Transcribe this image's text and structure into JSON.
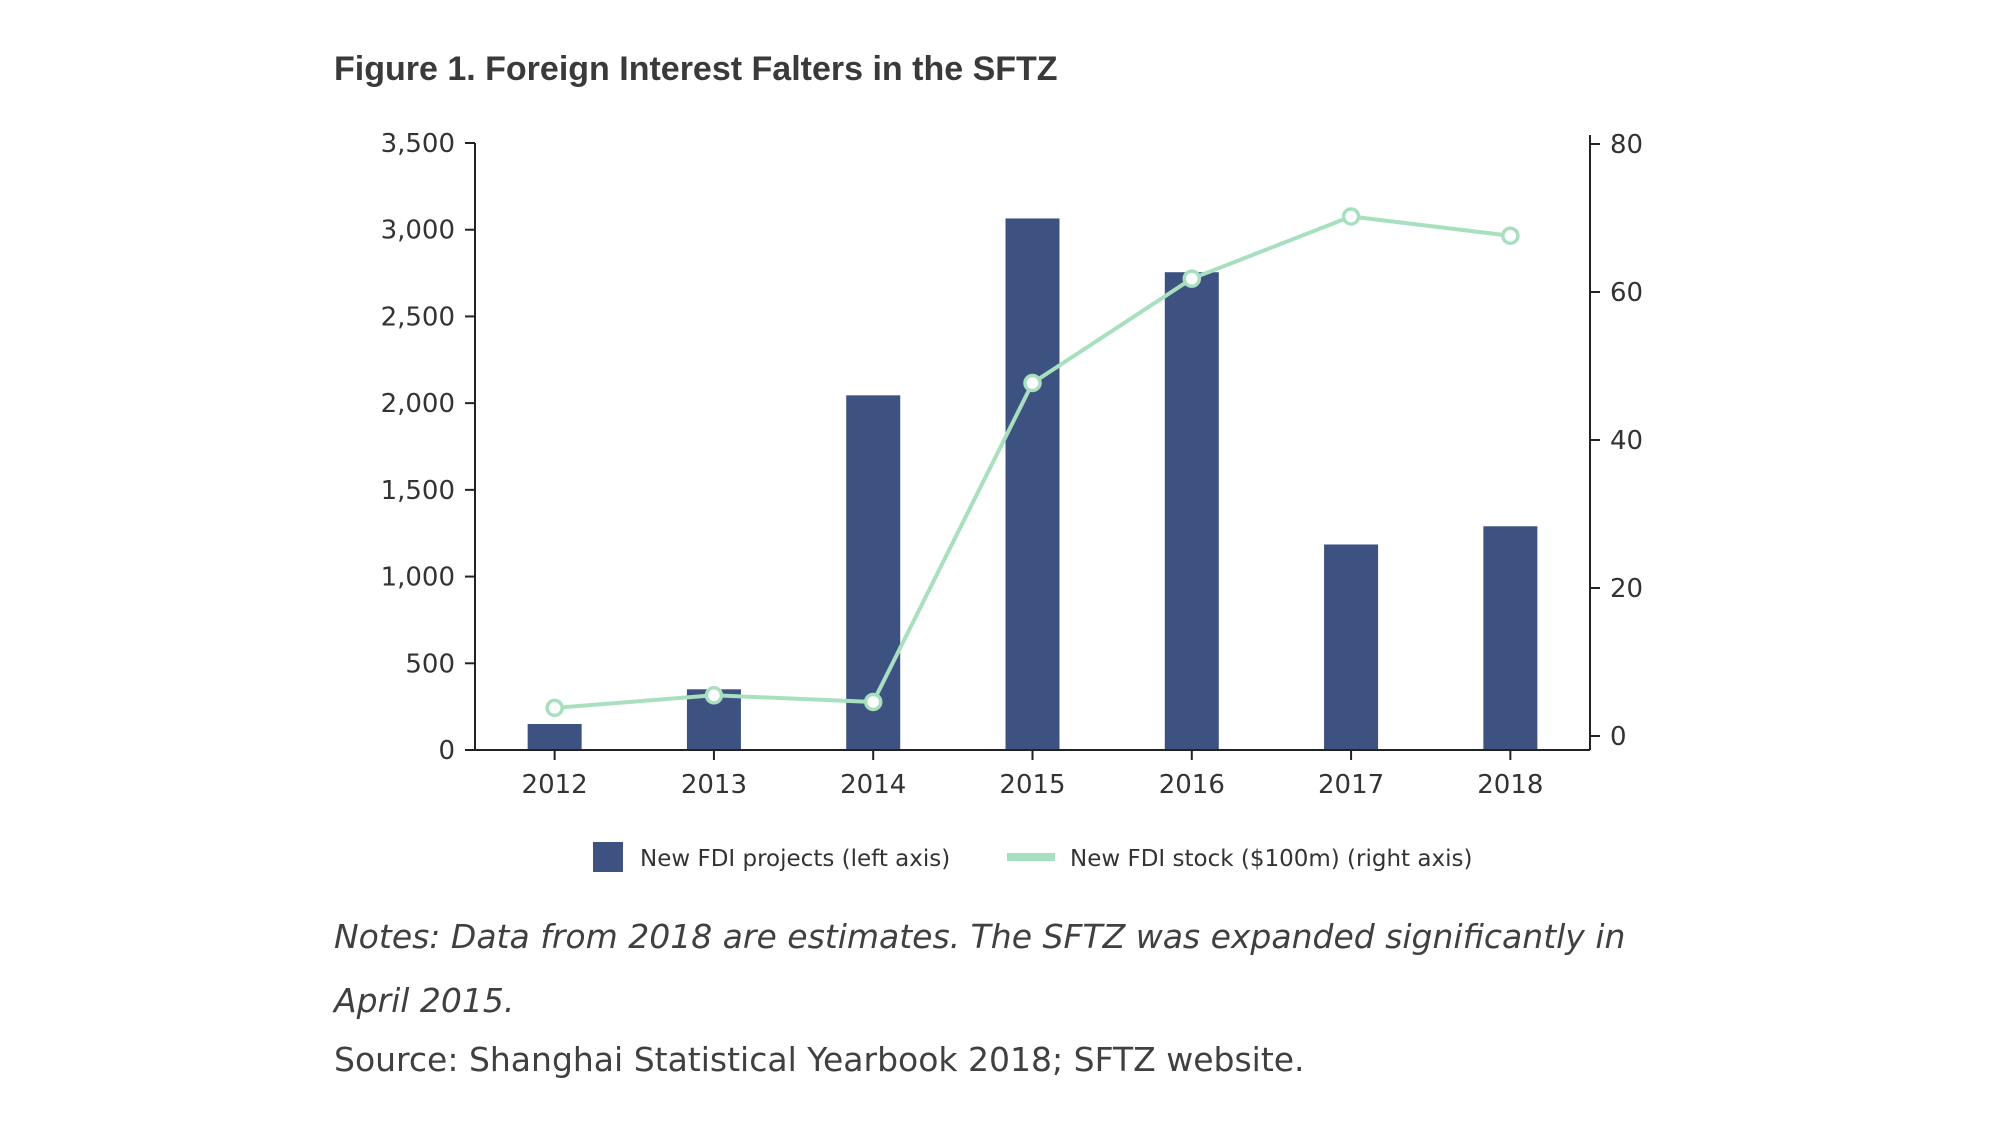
{
  "figure": {
    "title": "Figure 1. Foreign Interest Falters in the SFTZ",
    "notes": "Notes: Data from 2018 are estimates. The SFTZ was expanded significantly in April 2015.",
    "source": "Source: Shanghai Statistical Yearbook 2018; SFTZ website."
  },
  "chart_data": {
    "type": "bar",
    "title": "Figure 1. Foreign Interest Falters in the SFTZ",
    "categories": [
      "2012",
      "2013",
      "2014",
      "2015",
      "2016",
      "2017",
      "2018"
    ],
    "series": [
      {
        "name": "New FDI projects (left axis)",
        "type": "bar",
        "axis": "left",
        "color": "#3d5280",
        "values": [
          150,
          350,
          2045,
          3065,
          2755,
          1185,
          1290
        ]
      },
      {
        "name": "New FDI stock ($100m) (right axis)",
        "type": "line",
        "axis": "right",
        "color": "#a8e0bf",
        "values": [
          3.8,
          5.5,
          4.6,
          47.7,
          61.8,
          70.2,
          67.6
        ]
      }
    ],
    "left_axis": {
      "ylim": [
        0,
        3500
      ],
      "ticks": [
        0,
        500,
        1000,
        1500,
        2000,
        2500,
        3000,
        3500
      ],
      "tick_labels": [
        "0",
        "500",
        "1,000",
        "1,500",
        "2,000",
        "2,500",
        "3,000",
        "3,500"
      ]
    },
    "right_axis": {
      "ylim": [
        0,
        80
      ],
      "ticks": [
        0,
        20,
        40,
        60,
        80
      ],
      "tick_labels": [
        "0",
        "20",
        "40",
        "60",
        "80"
      ]
    },
    "xlabel": "",
    "ylabel": "",
    "grid": false,
    "legend_position": "bottom-center"
  }
}
